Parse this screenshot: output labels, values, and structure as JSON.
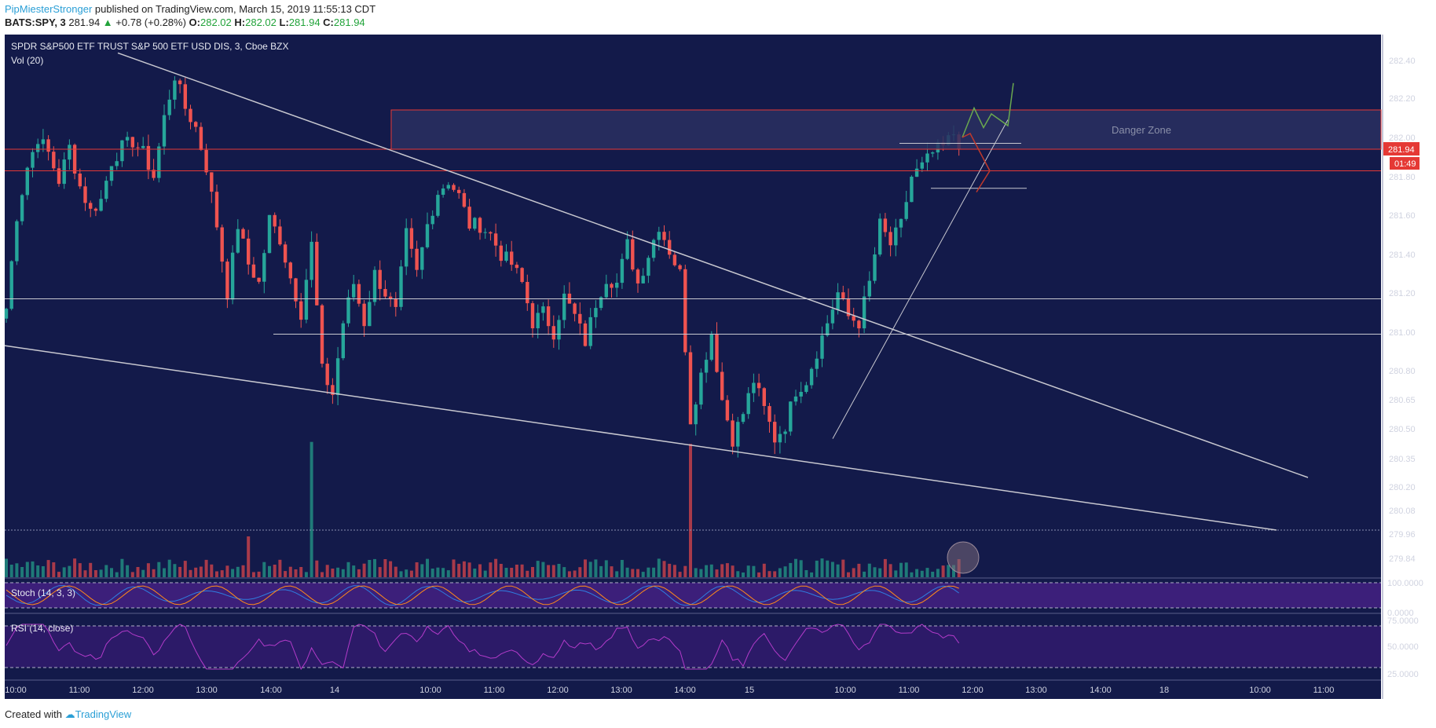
{
  "header": {
    "author": "PipMiesterStronger",
    "published": "published on TradingView.com, March 15, 2019 11:55:13 CDT",
    "symbol": "BATS:SPY, 3",
    "last": "281.94",
    "change_arrow": "▲",
    "change": "+0.78 (+0.28%)",
    "o_label": "O:",
    "o_value": "282.02",
    "h_label": "H:",
    "h_value": "282.02",
    "l_label": "L:",
    "l_value": "281.94",
    "c_label": "C:",
    "c_value": "281.94"
  },
  "footer": {
    "created_with": "Created with",
    "brand": "TradingView"
  },
  "colors": {
    "background": "#131a4a",
    "bull": "#26a69a",
    "bear": "#ef5350",
    "trendline": "#c8c8d0",
    "zone_border": "#e53935",
    "stoch_band": "#3c1f7a",
    "rsi_band": "#2c1a68",
    "rsi_line": "#b23bc9",
    "stoch_k": "#2f7ee0",
    "stoch_d": "#ff8c1a"
  },
  "chart_data": {
    "type": "candlestick",
    "title": "SPDR S&P500 ETF TRUST S&P 500 ETF USD DIS, 3, Cboe BZX",
    "volume_label": "Vol (20)",
    "y_ticks": [
      "282.40",
      "282.20",
      "282.00",
      "281.80",
      "281.60",
      "281.40",
      "281.20",
      "281.00",
      "280.80",
      "280.65",
      "280.50",
      "280.35",
      "280.20",
      "280.08",
      "279.96",
      "279.84"
    ],
    "x_ticks": [
      "10:00",
      "11:00",
      "12:00",
      "13:00",
      "14:00",
      "14",
      "10:00",
      "11:00",
      "12:00",
      "13:00",
      "14:00",
      "15",
      "10:00",
      "11:00",
      "12:00",
      "13:00",
      "14:00",
      "18",
      "10:00",
      "11:00"
    ],
    "price_badge": "281.94",
    "countdown_badge": "01:49",
    "annotation_zone": "Danger Zone",
    "close_path": [
      [
        0,
        281.12
      ],
      [
        2,
        281.6
      ],
      [
        4,
        281.85
      ],
      [
        6,
        282.0
      ],
      [
        8,
        281.92
      ],
      [
        10,
        281.78
      ],
      [
        12,
        281.95
      ],
      [
        14,
        281.75
      ],
      [
        16,
        281.62
      ],
      [
        18,
        281.68
      ],
      [
        20,
        281.88
      ],
      [
        22,
        281.95
      ],
      [
        24,
        281.98
      ],
      [
        26,
        281.92
      ],
      [
        28,
        281.8
      ],
      [
        30,
        282.1
      ],
      [
        32,
        282.32
      ],
      [
        34,
        282.15
      ],
      [
        36,
        282.05
      ],
      [
        38,
        281.85
      ],
      [
        40,
        281.55
      ],
      [
        42,
        281.2
      ],
      [
        44,
        281.55
      ],
      [
        46,
        281.35
      ],
      [
        48,
        281.25
      ],
      [
        50,
        281.58
      ],
      [
        52,
        281.48
      ],
      [
        54,
        281.28
      ],
      [
        56,
        281.1
      ],
      [
        58,
        281.45
      ],
      [
        60,
        280.8
      ],
      [
        62,
        280.68
      ],
      [
        64,
        281.05
      ],
      [
        66,
        281.25
      ],
      [
        68,
        281.05
      ],
      [
        70,
        281.3
      ],
      [
        72,
        281.2
      ],
      [
        74,
        281.1
      ],
      [
        76,
        281.5
      ],
      [
        78,
        281.3
      ],
      [
        80,
        281.55
      ],
      [
        82,
        281.72
      ],
      [
        84,
        281.78
      ],
      [
        86,
        281.7
      ],
      [
        88,
        281.55
      ],
      [
        90,
        281.55
      ],
      [
        92,
        281.5
      ],
      [
        94,
        281.4
      ],
      [
        96,
        281.35
      ],
      [
        98,
        281.25
      ],
      [
        100,
        281.05
      ],
      [
        102,
        281.1
      ],
      [
        104,
        281.0
      ],
      [
        106,
        281.18
      ],
      [
        108,
        281.08
      ],
      [
        110,
        280.95
      ],
      [
        112,
        281.15
      ],
      [
        114,
        281.28
      ],
      [
        116,
        281.25
      ],
      [
        118,
        281.45
      ],
      [
        120,
        281.25
      ],
      [
        122,
        281.4
      ],
      [
        124,
        281.55
      ],
      [
        126,
        281.42
      ],
      [
        128,
        281.3
      ],
      [
        130,
        280.55
      ],
      [
        132,
        280.78
      ],
      [
        134,
        281.0
      ],
      [
        136,
        280.65
      ],
      [
        138,
        280.45
      ],
      [
        140,
        280.58
      ],
      [
        142,
        280.75
      ],
      [
        144,
        280.6
      ],
      [
        146,
        280.45
      ],
      [
        148,
        280.52
      ],
      [
        150,
        280.7
      ],
      [
        152,
        280.75
      ],
      [
        154,
        280.9
      ],
      [
        156,
        281.05
      ],
      [
        158,
        281.2
      ],
      [
        160,
        281.08
      ],
      [
        162,
        281.05
      ],
      [
        164,
        281.25
      ],
      [
        166,
        281.55
      ],
      [
        168,
        281.45
      ],
      [
        170,
        281.55
      ],
      [
        172,
        281.8
      ],
      [
        174,
        281.85
      ],
      [
        176,
        281.92
      ],
      [
        178,
        281.95
      ],
      [
        180,
        282.02
      ],
      [
        181,
        281.94
      ]
    ],
    "volume_spikes": [
      {
        "bar": 58,
        "value": "high"
      },
      {
        "bar": 130,
        "value": "high"
      },
      {
        "bar": 46,
        "value": "medium"
      }
    ],
    "y_range": [
      279.76,
      282.5
    ],
    "studies": [
      {
        "name": "Stoch (14, 3, 3)",
        "ticks": [
          "100.0000",
          "0.0000"
        ]
      },
      {
        "name": "RSI (14, close)",
        "ticks": [
          "75.0000",
          "50.0000",
          "25.0000"
        ]
      }
    ],
    "grid": false
  }
}
